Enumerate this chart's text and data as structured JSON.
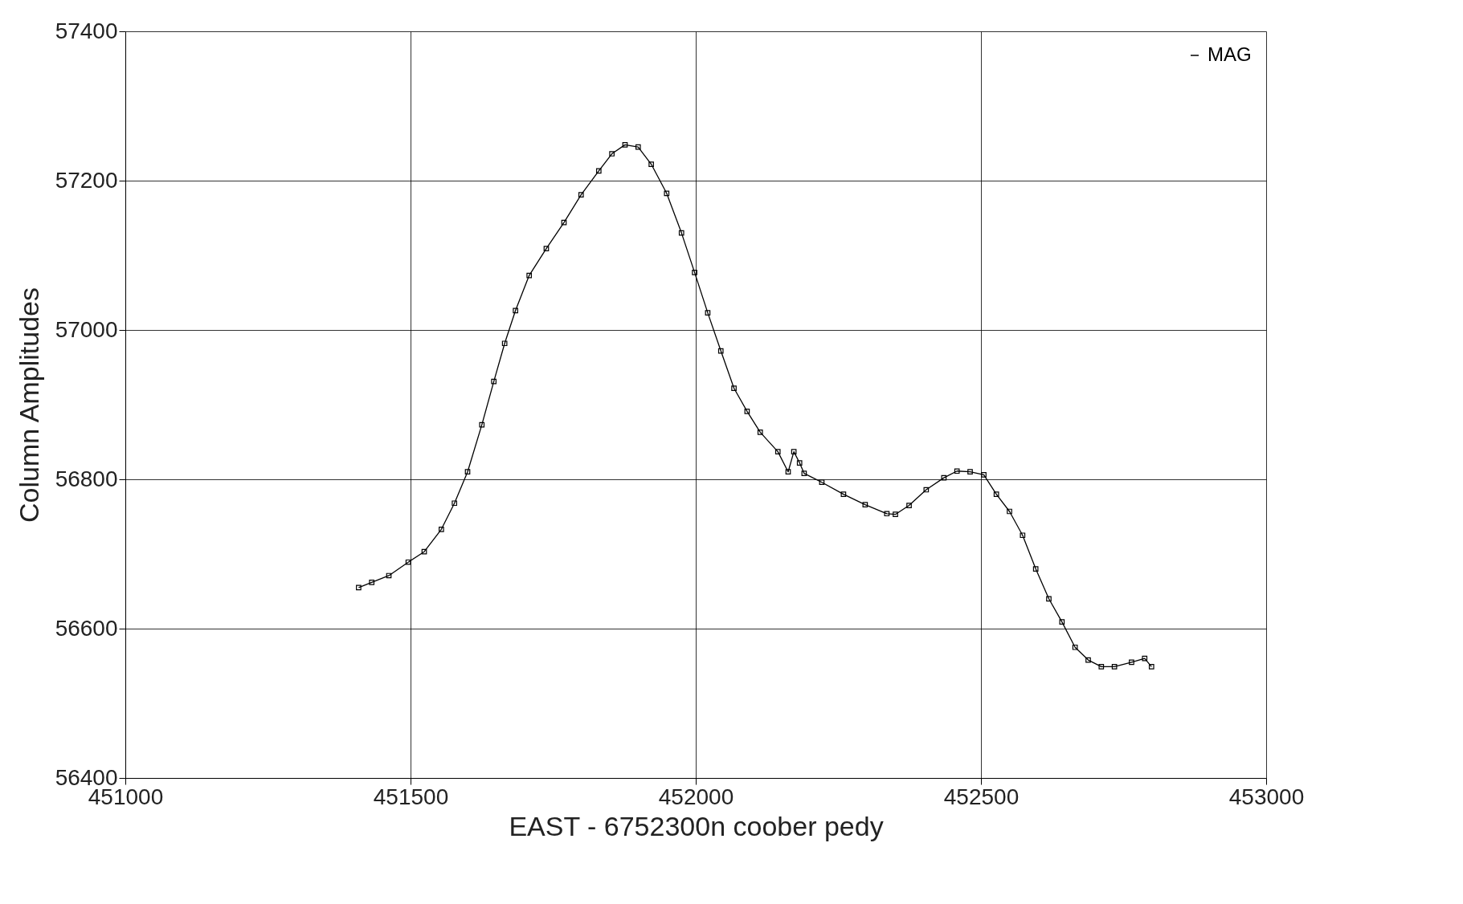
{
  "chart_data": {
    "type": "line",
    "xlabel": "EAST - 6752300n coober pedy",
    "ylabel": "Column Amplitudes",
    "xlim": [
      451000,
      453000
    ],
    "xticks": [
      451000,
      451500,
      452000,
      452500,
      453000
    ],
    "ylim": [
      56400,
      57400
    ],
    "yticks": [
      56400,
      56600,
      56800,
      57000,
      57200,
      57400
    ],
    "grid": true,
    "legend": "top right",
    "marker": "square",
    "line_style": "solid",
    "x": [
      451409,
      451432,
      451462,
      451496,
      451524,
      451554,
      451577,
      451600,
      451625,
      451646,
      451665,
      451684,
      451708,
      451738,
      451769,
      451799,
      451830,
      451853,
      451876,
      451899,
      451922,
      451949,
      451975,
      451998,
      452021,
      452044,
      452067,
      452090,
      452113,
      452144,
      452162,
      452172,
      452182,
      452190,
      452221,
      452259,
      452297,
      452335,
      452350,
      452374,
      452404,
      452435,
      452458,
      452481,
      452505,
      452527,
      452550,
      452573,
      452596,
      452619,
      452642,
      452665,
      452688,
      452711,
      452734,
      452764,
      452787,
      452799
    ],
    "series": [
      {
        "name": "MAG",
        "color": "#000000",
        "values": [
          56655,
          56662,
          56671,
          56689,
          56703,
          56733,
          56768,
          56810,
          56873,
          56931,
          56982,
          57026,
          57073,
          57109,
          57144,
          57181,
          57213,
          57236,
          57248,
          57245,
          57222,
          57183,
          57130,
          57077,
          57023,
          56972,
          56922,
          56891,
          56863,
          56837,
          56810,
          56837,
          56822,
          56808,
          56796,
          56780,
          56766,
          56754,
          56753,
          56765,
          56786,
          56802,
          56811,
          56810,
          56806,
          56780,
          56757,
          56725,
          56680,
          56640,
          56609,
          56575,
          56558,
          56549,
          56549,
          56555,
          56560,
          56549
        ]
      }
    ]
  }
}
